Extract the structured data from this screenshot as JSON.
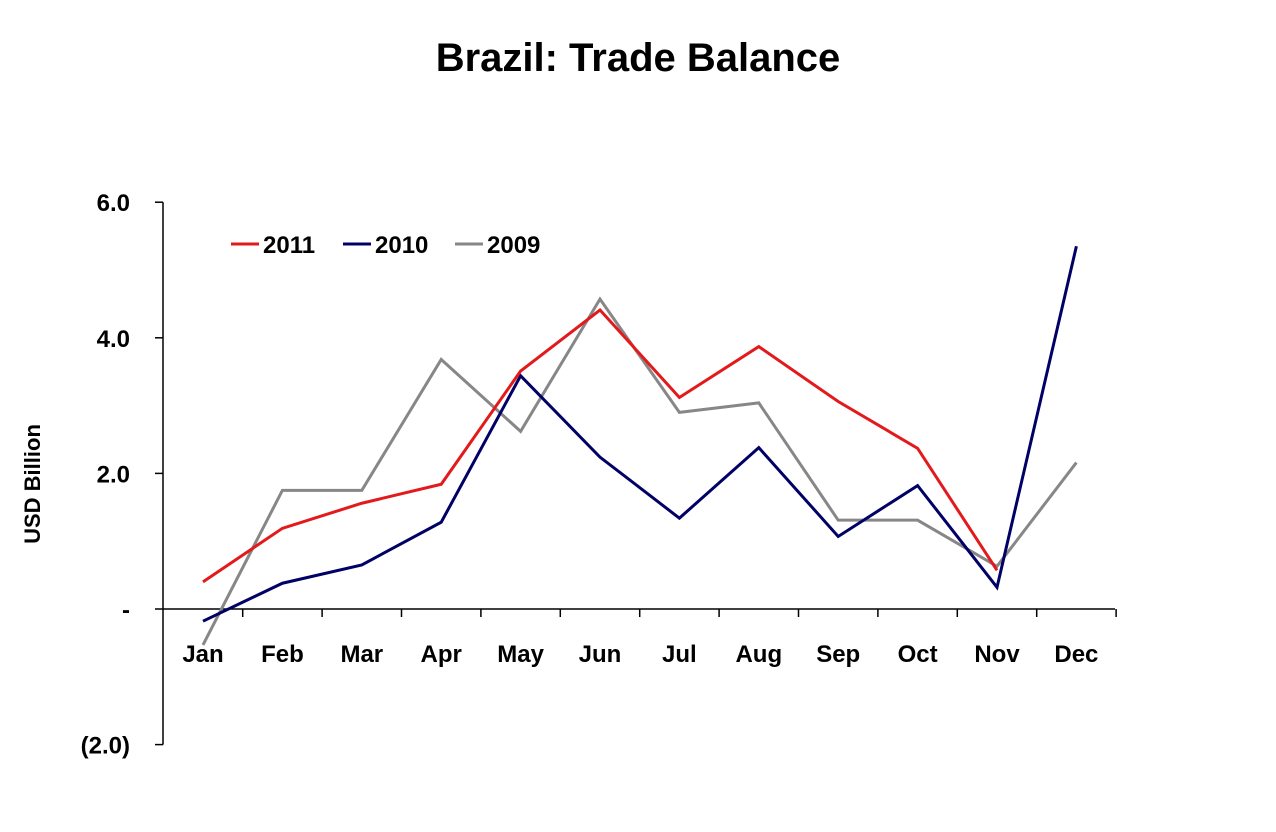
{
  "chart_data": {
    "type": "line",
    "title": "Brazil: Trade Balance",
    "xlabel": "",
    "ylabel": "USD Billion",
    "ylim": [
      -2.0,
      6.0
    ],
    "yticks": [
      6.0,
      4.0,
      2.0,
      0.0,
      -2.0
    ],
    "ytick_labels": [
      "6.0",
      "4.0",
      "2.0",
      "-",
      "(2.0)"
    ],
    "grid": false,
    "legend_position": "top-left",
    "categories": [
      "Jan",
      "Feb",
      "Mar",
      "Apr",
      "May",
      "Jun",
      "Jul",
      "Aug",
      "Sep",
      "Oct",
      "Nov",
      "Dec"
    ],
    "series": [
      {
        "name": "2011",
        "color": "#e31a1c",
        "values": [
          0.4,
          1.19,
          1.56,
          1.84,
          3.51,
          4.41,
          3.12,
          3.87,
          3.06,
          2.37,
          0.57,
          null
        ]
      },
      {
        "name": "2010",
        "color": "#000066",
        "values": [
          -0.18,
          0.38,
          0.65,
          1.28,
          3.44,
          2.24,
          1.34,
          2.38,
          1.07,
          1.82,
          0.32,
          5.35
        ]
      },
      {
        "name": "2009",
        "color": "#878787",
        "values": [
          -0.53,
          1.75,
          1.75,
          3.68,
          2.62,
          4.57,
          2.9,
          3.04,
          1.31,
          1.31,
          0.63,
          2.16
        ]
      }
    ]
  }
}
